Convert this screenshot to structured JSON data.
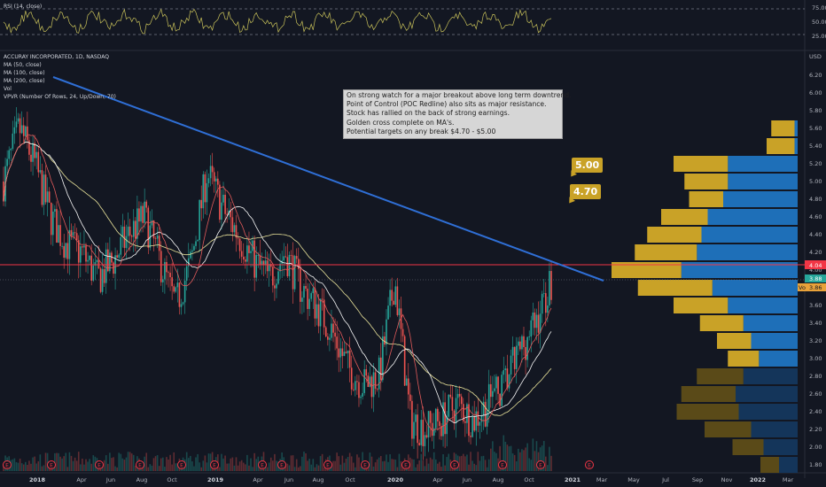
{
  "rsi_panel": {
    "label": "RSI (14, close)",
    "levels": [
      "75.00",
      "50.00",
      "25.00"
    ]
  },
  "legend": {
    "symbol": "ACCURAY INCORPORATED, 1D, NASDAQ",
    "lines": [
      "MA (50, close)",
      "MA (100, close)",
      "MA (200, close)",
      "Vol",
      "VPVR (Number Of Rows, 24, Up/Down, 70)"
    ]
  },
  "annotation": {
    "lines": [
      "On strong watch for a major breakout above long term downtrend.",
      "Point of Control (POC Redline) also sits as major resistance.",
      "Stock has rallied on the back of strong earnings.",
      "Golden cross complete on MA's.",
      "Potential targets on any break  $4.70 - $5.00"
    ]
  },
  "callouts": {
    "target_high": "5.00",
    "target_low": "4.70"
  },
  "price_axis": {
    "currency": "USD",
    "ticks": [
      "6.20",
      "6.00",
      "5.80",
      "5.60",
      "5.40",
      "5.20",
      "5.00",
      "4.80",
      "4.60",
      "4.40",
      "4.20",
      "4.00",
      "3.80",
      "3.60",
      "3.40",
      "3.20",
      "3.00",
      "2.80",
      "2.60",
      "2.40",
      "2.20",
      "2.00",
      "1.80"
    ],
    "poc_label": "4.04",
    "last_label": "3.88",
    "vol_tag": "Vo",
    "vol_value": "3.86"
  },
  "time_axis": {
    "ticks": [
      "2018",
      "Apr",
      "Jun",
      "Aug",
      "Oct",
      "2019",
      "Apr",
      "Jun",
      "Aug",
      "Oct",
      "2020",
      "Apr",
      "Jun",
      "Aug",
      "Oct",
      "2021",
      "Mar",
      "May",
      "Jul",
      "Sep",
      "Nov",
      "2022",
      "Mar"
    ]
  },
  "colors": {
    "background": "#131722",
    "trendline": "#2f6fd6",
    "poc_line": "#f23645",
    "up": "#26a69a",
    "down": "#ef5350",
    "ma50": "#e05a5a",
    "ma100": "#f5f5f5",
    "ma200": "#e8e29a",
    "rsi": "#c9c25a",
    "vpvr_up": "#1e6fb8",
    "vpvr_down": "#c9a227"
  },
  "chart_data": {
    "type": "candlestick",
    "x": "dates (Jan 2018 – Dec 2020)",
    "ylim": [
      1.7,
      6.3
    ],
    "trendline": {
      "start": [
        "2018-02",
        6.15
      ],
      "end": [
        "2021-03",
        3.88
      ]
    },
    "poc": 4.04,
    "targets": [
      4.7,
      5.0
    ],
    "close_path": {
      "dates": [
        "2018-01",
        "2018-02",
        "2018-03",
        "2018-04",
        "2018-05",
        "2018-06",
        "2018-07",
        "2018-08",
        "2018-09",
        "2018-10",
        "2018-11",
        "2018-12",
        "2019-01",
        "2019-02",
        "2019-03",
        "2019-04",
        "2019-05",
        "2019-06",
        "2019-07",
        "2019-08",
        "2019-09",
        "2019-10",
        "2019-11",
        "2019-12",
        "2020-01",
        "2020-02",
        "2020-03",
        "2020-04",
        "2020-05",
        "2020-06",
        "2020-07",
        "2020-08",
        "2020-09",
        "2020-10",
        "2020-11",
        "2020-12"
      ],
      "values": [
        5.0,
        5.6,
        5.2,
        4.6,
        4.3,
        4.2,
        3.9,
        4.1,
        4.4,
        4.6,
        4.1,
        3.6,
        4.1,
        5.1,
        4.7,
        4.4,
        4.1,
        3.9,
        4.2,
        3.8,
        3.6,
        3.3,
        2.9,
        2.7,
        2.8,
        3.9,
        2.3,
        2.2,
        2.3,
        2.5,
        2.3,
        2.5,
        2.7,
        3.1,
        3.4,
        3.88
      ]
    },
    "vpvr": {
      "prices": [
        5.6,
        5.4,
        5.2,
        5.0,
        4.8,
        4.6,
        4.4,
        4.2,
        4.0,
        3.8,
        3.6,
        3.4,
        3.2,
        3.0,
        2.8,
        2.6,
        2.4,
        2.2,
        2.0,
        1.8
      ],
      "up": [
        0.02,
        0.02,
        0.45,
        0.45,
        0.48,
        0.58,
        0.62,
        0.65,
        0.75,
        0.55,
        0.45,
        0.35,
        0.3,
        0.25,
        0.35,
        0.4,
        0.38,
        0.3,
        0.22,
        0.12
      ],
      "down": [
        0.15,
        0.18,
        0.35,
        0.28,
        0.22,
        0.3,
        0.35,
        0.4,
        0.45,
        0.48,
        0.35,
        0.28,
        0.22,
        0.2,
        0.3,
        0.35,
        0.4,
        0.3,
        0.2,
        0.12
      ]
    }
  }
}
